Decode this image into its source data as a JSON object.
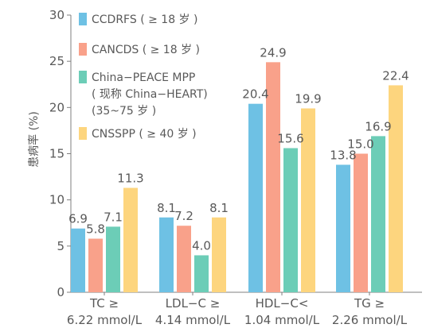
{
  "chart_data": {
    "type": "bar",
    "ylabel": "患病率 (%)",
    "xlabel": "",
    "ylim": [
      0,
      30
    ],
    "yticks": [
      0,
      5,
      10,
      15,
      20,
      25,
      30
    ],
    "grid": false,
    "legend_position": "top-left",
    "categories": [
      [
        "TC ≥",
        "6.22 mmol/L"
      ],
      [
        "LDL−C ≥",
        "4.14 mmol/L"
      ],
      [
        "HDL−C<",
        "1.04 mmol/L"
      ],
      [
        "TG ≥",
        "2.26 mmol/L"
      ]
    ],
    "series": [
      {
        "name": "CCDRFS ( ≥ 18 岁 )",
        "legend_lines": [
          "CCDRFS ( ≥ 18 岁 )"
        ],
        "color": "#6EC1E4",
        "values": [
          6.9,
          8.1,
          20.4,
          13.8
        ]
      },
      {
        "name": "CANCDS ( ≥ 18 岁 )",
        "legend_lines": [
          "CANCDS ( ≥ 18 岁 )"
        ],
        "color": "#F9A18A",
        "values": [
          5.8,
          7.2,
          24.9,
          15.0
        ]
      },
      {
        "name": "China−PEACE MPP ( 现称 China−HEART) (35~75 岁 )",
        "legend_lines": [
          "China−PEACE MPP",
          "( 现称 China−HEART)",
          "(35~75 岁 )"
        ],
        "color": "#6CCDB7",
        "values": [
          7.1,
          4.0,
          15.6,
          16.9
        ]
      },
      {
        "name": "CNSSPP ( ≥ 40 岁 )",
        "legend_lines": [
          "CNSSPP ( ≥ 40 岁 )"
        ],
        "color": "#FDD57E",
        "values": [
          11.3,
          8.1,
          19.9,
          22.4
        ]
      }
    ]
  }
}
